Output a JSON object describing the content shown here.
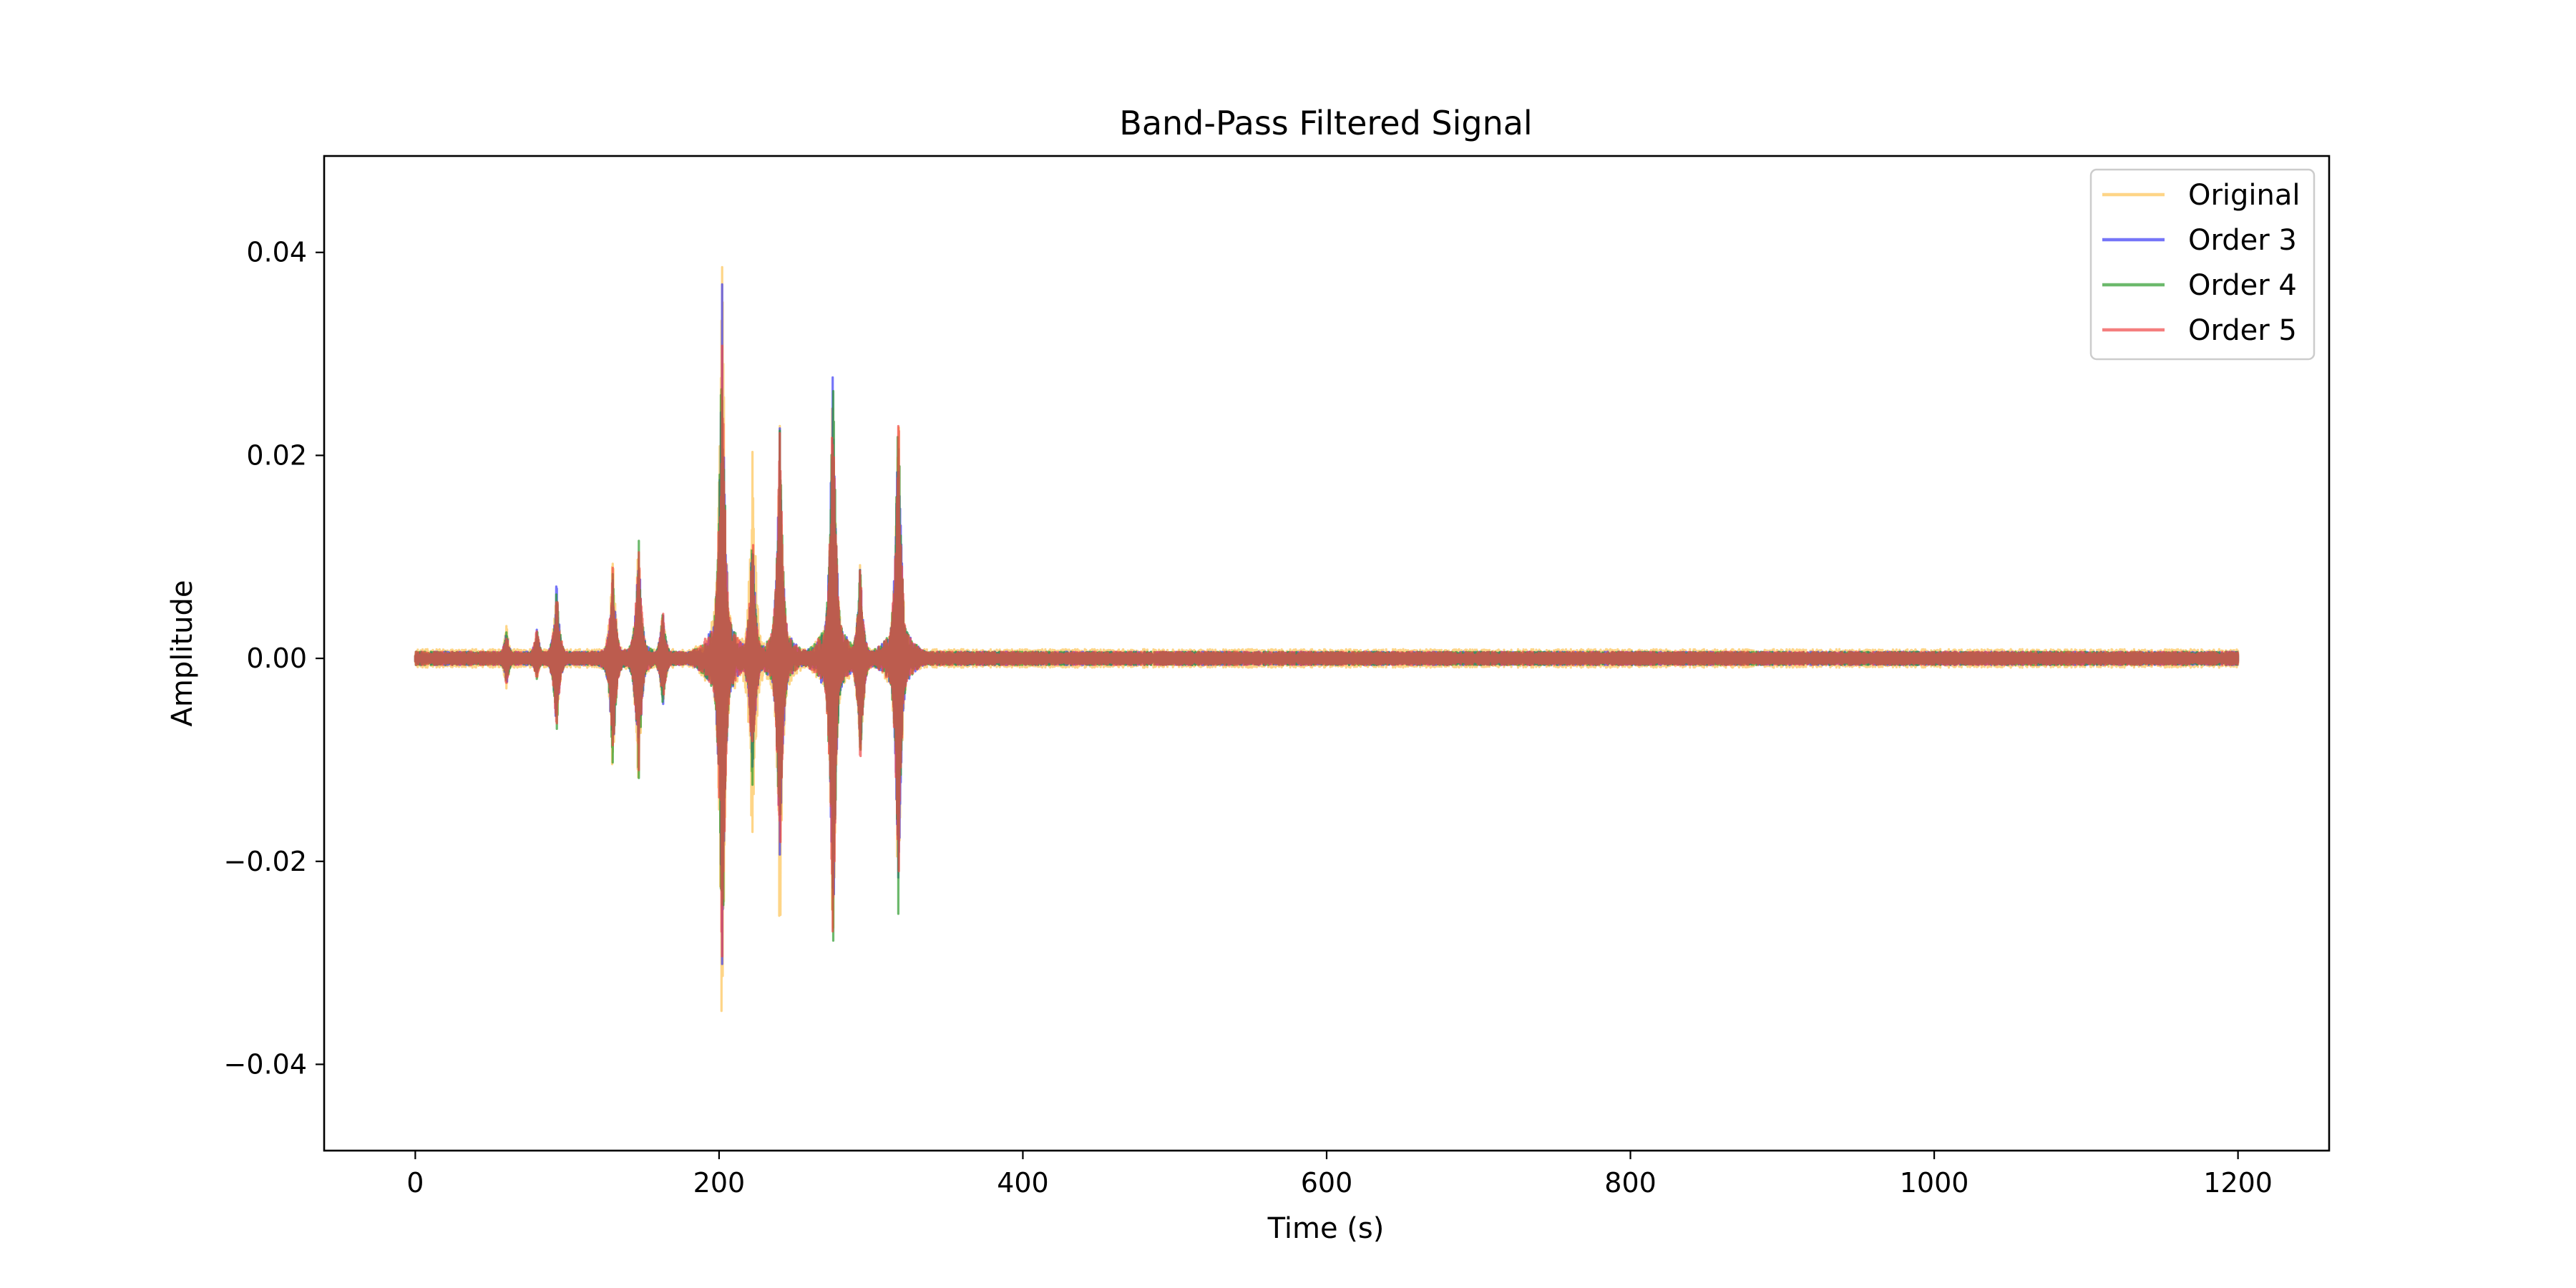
{
  "chart_data": {
    "type": "line",
    "title": "Band-Pass Filtered Signal",
    "xlabel": "Time (s)",
    "ylabel": "Amplitude",
    "xlim": [
      -60,
      1260
    ],
    "ylim": [
      -0.0485,
      0.0495
    ],
    "xticks": [
      0,
      200,
      400,
      600,
      800,
      1000,
      1200
    ],
    "xtick_labels": [
      "0",
      "200",
      "400",
      "600",
      "800",
      "1000",
      "1200"
    ],
    "yticks": [
      -0.04,
      -0.02,
      0.0,
      0.02,
      0.04
    ],
    "ytick_labels": [
      "−0.04",
      "−0.02",
      "0.00",
      "0.02",
      "0.04"
    ],
    "grid": false,
    "legend_position": "top-right",
    "x_range": [
      0,
      1200
    ],
    "series": [
      {
        "name": "Original",
        "color": "#fdb937",
        "opacity": 0.6,
        "noise": 0.0007,
        "bursts": [
          [
            60,
            0.0035,
            -0.0035
          ],
          [
            80,
            0.0035,
            -0.0025
          ],
          [
            93,
            0.0085,
            -0.008
          ],
          [
            130,
            0.0125,
            -0.0125
          ],
          [
            147,
            0.013,
            -0.015
          ],
          [
            163,
            0.0055,
            -0.0055
          ],
          [
            202,
            0.046,
            -0.044
          ],
          [
            222,
            0.026,
            -0.026
          ],
          [
            240,
            0.0255,
            -0.031
          ],
          [
            275,
            0.0335,
            -0.0365
          ],
          [
            293,
            0.0105,
            -0.0125
          ],
          [
            318,
            0.0285,
            -0.0295
          ]
        ]
      },
      {
        "name": "Order 3",
        "color": "#3a3af5",
        "opacity": 0.7,
        "noise": 0.0005,
        "bursts": [
          [
            60,
            0.0028,
            -0.0028
          ],
          [
            80,
            0.0032,
            -0.0022
          ],
          [
            93,
            0.0078,
            -0.0078
          ],
          [
            130,
            0.0095,
            -0.0115
          ],
          [
            147,
            0.0128,
            -0.013
          ],
          [
            163,
            0.005,
            -0.005
          ],
          [
            202,
            0.0375,
            -0.0355
          ],
          [
            222,
            0.0135,
            -0.0135
          ],
          [
            240,
            0.0255,
            -0.0225
          ],
          [
            275,
            0.033,
            -0.032
          ],
          [
            293,
            0.01,
            -0.011
          ],
          [
            318,
            0.028,
            -0.0255
          ]
        ]
      },
      {
        "name": "Order 4",
        "color": "#2e9b2e",
        "opacity": 0.7,
        "noise": 0.0005,
        "bursts": [
          [
            60,
            0.0028,
            -0.0028
          ],
          [
            80,
            0.0032,
            -0.0022
          ],
          [
            93,
            0.0078,
            -0.0078
          ],
          [
            130,
            0.0095,
            -0.0115
          ],
          [
            147,
            0.0128,
            -0.013
          ],
          [
            163,
            0.005,
            -0.005
          ],
          [
            202,
            0.0375,
            -0.0355
          ],
          [
            222,
            0.0135,
            -0.0135
          ],
          [
            240,
            0.0255,
            -0.0225
          ],
          [
            275,
            0.033,
            -0.032
          ],
          [
            293,
            0.01,
            -0.011
          ],
          [
            318,
            0.028,
            -0.0255
          ]
        ]
      },
      {
        "name": "Order 5",
        "color": "#f04747",
        "opacity": 0.7,
        "noise": 0.0005,
        "bursts": [
          [
            60,
            0.0028,
            -0.0028
          ],
          [
            80,
            0.0032,
            -0.0022
          ],
          [
            93,
            0.0078,
            -0.0078
          ],
          [
            130,
            0.0095,
            -0.0115
          ],
          [
            147,
            0.0128,
            -0.013
          ],
          [
            163,
            0.005,
            -0.005
          ],
          [
            202,
            0.0375,
            -0.0355
          ],
          [
            222,
            0.0135,
            -0.0135
          ],
          [
            240,
            0.0255,
            -0.0225
          ],
          [
            275,
            0.033,
            -0.032
          ],
          [
            293,
            0.01,
            -0.011
          ],
          [
            318,
            0.028,
            -0.0255
          ]
        ]
      }
    ]
  }
}
